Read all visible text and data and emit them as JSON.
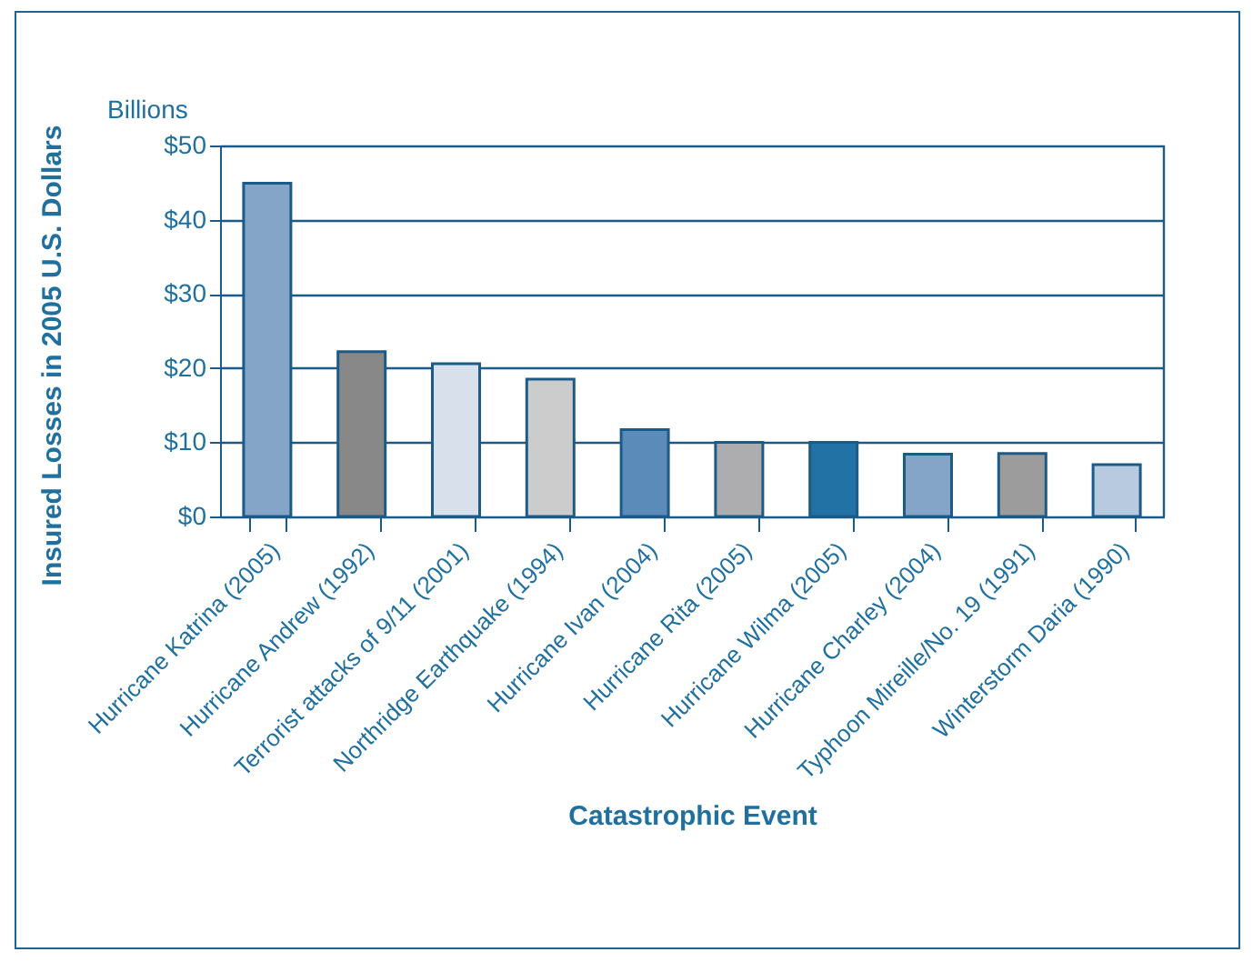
{
  "chart_data": {
    "type": "bar",
    "xlabel": "Catastrophic Event",
    "ylabel": "Insured Losses in 2005 U.S. Dollars",
    "annotations": [
      "Billions"
    ],
    "categories": [
      "Hurricane Katrina (2005)",
      "Hurricane Andrew (1992)",
      "Terrorist attacks of 9/11 (2001)",
      "Northridge Earthquake (1994)",
      "Hurricane Ivan (2004)",
      "Hurricane Rita (2005)",
      "Hurricane Wilma (2005)",
      "Hurricane Charley (2004)",
      "Typhoon Mireille/No. 19 (1991)",
      "Winterstorm Daria (1990)"
    ],
    "values": [
      44.9,
      22.2,
      20.6,
      18.5,
      11.7,
      10.0,
      10.0,
      8.4,
      8.5,
      7.0
    ],
    "colors": [
      "#84a4c8",
      "#888888",
      "#d8e0ec",
      "#cccccc",
      "#5b8bb8",
      "#adadb0",
      "#2272a5",
      "#84a4c8",
      "#9c9c9c",
      "#b8cae0"
    ],
    "ylim": [
      0,
      50
    ],
    "yticks": [
      {
        "value": 0,
        "label": "$0"
      },
      {
        "value": 10,
        "label": "$10"
      },
      {
        "value": 20,
        "label": "$20"
      },
      {
        "value": 30,
        "label": "$30"
      },
      {
        "value": 40,
        "label": "$40"
      },
      {
        "value": 50,
        "label": "$50"
      }
    ],
    "grid": "y",
    "legend": false
  }
}
